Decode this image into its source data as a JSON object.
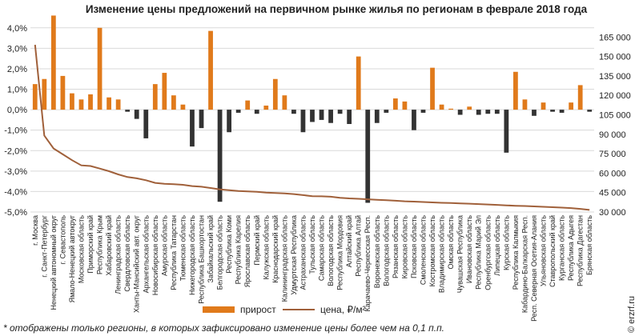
{
  "chart_data": {
    "type": "bar",
    "title": "Изменение цены предложений на первичном рынке жилья по регионам в феврале 2018 года",
    "y_left": {
      "ylim": [
        -5,
        4.5
      ],
      "ticks": [
        4,
        3,
        2,
        1,
        0,
        -1,
        -2,
        -3,
        -4,
        -5
      ],
      "tick_labels": [
        "4,0%",
        "3,0%",
        "2,0%",
        "1,0%",
        "0,0%",
        "-1,0%",
        "-2,0%",
        "-3,0%",
        "-4,0%",
        "-5,0%"
      ]
    },
    "y_right": {
      "ylim": [
        30000,
        180000
      ],
      "ticks": [
        165000,
        150000,
        135000,
        120000,
        105000,
        90000,
        75000,
        60000,
        45000,
        30000
      ],
      "tick_labels": [
        "165 000",
        "150 000",
        "135 000",
        "120 000",
        "105 000",
        "90 000",
        "75 000",
        "60 000",
        "45 000",
        "30 000"
      ]
    },
    "categories": [
      "г. Москва",
      "г. Санкт-Петербург",
      "Ненецкий автономный округ",
      "г. Севастополь",
      "Ямало-Ненецкий автокруг",
      "Московская область",
      "Приморский край",
      "Республика Крым",
      "Хабаровский край",
      "Ленинградская область",
      "Свердловская область",
      "Ханты-Мансийский авт. округ",
      "Архангельская область",
      "Новосибирская область",
      "Амурская область",
      "Республика Татарстан",
      "Тюменская область",
      "Нижегородская область",
      "Республика Башкортостан",
      "Забайкальский край",
      "Белгородская область",
      "Республика Коми",
      "Республика Карелия",
      "Ярославская область",
      "Пермский край",
      "Калужская область",
      "Краснодарский край",
      "Калининградская область",
      "Удмуртская Республика",
      "Астраханская область",
      "Тульская область",
      "Самарская область",
      "Вологодская область",
      "Республика Мордовия",
      "Алтайский край",
      "Республика Алтай",
      "Карачаево-Черкесская Респ.",
      "Воронежская область",
      "Вологодская область",
      "Рязанская область",
      "Кировская область",
      "Псковская область",
      "Смоленская область",
      "Костромская область",
      "Владимирская область",
      "Омская область",
      "Чувашская Республика",
      "Ивановская область",
      "Республика Марий Эл",
      "Оренбургская область",
      "Липецкая область",
      "Курская область",
      "Республика Калмыкия",
      "Кабардино-Балкарская Респ.",
      "Респ. Северная Осетия-Алания",
      "Ульяновская область",
      "Ставропольский край",
      "Курганская область",
      "Республика Адыгея",
      "Республика Дагестан",
      "Брянская область"
    ],
    "series": [
      {
        "name": "прирост",
        "axis": "left",
        "type": "bar",
        "color": "#E07A1B",
        "values": [
          1.25,
          1.5,
          4.6,
          1.65,
          0.8,
          0.5,
          0.75,
          4.0,
          0.6,
          0.5,
          -0.1,
          -0.45,
          -1.4,
          1.25,
          1.8,
          0.7,
          0.25,
          -1.8,
          -0.9,
          3.85,
          -4.5,
          -1.1,
          -0.15,
          0.45,
          -0.2,
          0.2,
          1.5,
          0.7,
          -0.2,
          -1.1,
          -0.6,
          -0.5,
          -0.65,
          -0.2,
          -0.7,
          2.6,
          -4.55,
          -0.65,
          -0.15,
          0.55,
          0.4,
          -1.0,
          -0.15,
          2.05,
          0.25,
          0.05,
          -0.25,
          0.15,
          -0.25,
          -0.2,
          -0.2,
          -2.1,
          1.85,
          0.5,
          -0.3,
          0.35,
          -0.1,
          -0.15,
          0.35,
          1.2,
          -0.1
        ]
      },
      {
        "name": "цена, ₽/м²",
        "axis": "right",
        "type": "line",
        "color": "#A0603A",
        "values": [
          159000,
          89000,
          79000,
          74500,
          70000,
          66000,
          65500,
          63500,
          61500,
          59000,
          57000,
          56000,
          54500,
          52500,
          51800,
          51500,
          51000,
          50000,
          49500,
          48500,
          47500,
          46800,
          46200,
          45900,
          45600,
          45000,
          44700,
          44300,
          43800,
          43000,
          42200,
          42100,
          41800,
          41000,
          40500,
          40200,
          39800,
          39400,
          39100,
          38700,
          38300,
          38000,
          37700,
          37400,
          37100,
          36900,
          36600,
          36400,
          36100,
          35800,
          35500,
          35100,
          34800,
          34600,
          34300,
          34000,
          33700,
          33400,
          33000,
          32400,
          31600
        ]
      }
    ],
    "legend": {
      "position": "bottom",
      "items": [
        "прирост",
        "цена, ₽/м²"
      ]
    }
  },
  "footnote": "* отображены только регионы, в которых зафиксировано изменение цены более чем на 0,1 п.п.",
  "watermark": "© erzrf.ru"
}
